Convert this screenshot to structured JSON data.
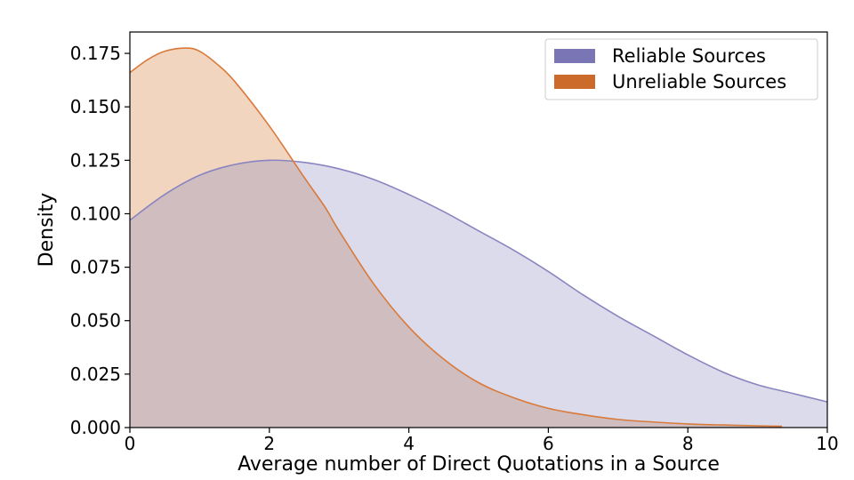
{
  "chart_data": {
    "type": "area",
    "title": "",
    "xlabel": "Average number of Direct Quotations in a Source",
    "ylabel": "Density",
    "xlim": [
      0,
      10
    ],
    "ylim": [
      0,
      0.185
    ],
    "x_ticks": [
      "0",
      "2",
      "4",
      "6",
      "8",
      "10"
    ],
    "y_ticks": [
      "0.000",
      "0.025",
      "0.050",
      "0.075",
      "0.100",
      "0.125",
      "0.150",
      "0.175"
    ],
    "grid": false,
    "legend_position": "top-right",
    "series": [
      {
        "name": "Reliable Sources",
        "line_color": "#8a85c0",
        "fill_color": "#dcdbeb",
        "x": [
          0,
          0.5,
          1,
          1.5,
          2,
          2.5,
          3,
          3.5,
          4,
          4.5,
          5,
          5.5,
          6,
          6.5,
          7,
          7.5,
          8,
          8.5,
          9,
          9.5,
          10
        ],
        "y": [
          0.097,
          0.109,
          0.118,
          0.123,
          0.125,
          0.124,
          0.121,
          0.116,
          0.109,
          0.101,
          0.092,
          0.083,
          0.073,
          0.062,
          0.052,
          0.043,
          0.034,
          0.026,
          0.02,
          0.016,
          0.012
        ]
      },
      {
        "name": "Unreliable Sources",
        "line_color": "#d97a3a",
        "fill_color": "#f2d5bf",
        "x": [
          0,
          0.25,
          0.5,
          0.8,
          1,
          1.25,
          1.5,
          2,
          2.5,
          2.8,
          3,
          3.5,
          4,
          4.5,
          5,
          5.5,
          6,
          6.5,
          7,
          7.5,
          8,
          8.5,
          9,
          9.35
        ],
        "y": [
          0.166,
          0.172,
          0.176,
          0.1775,
          0.176,
          0.17,
          0.162,
          0.141,
          0.117,
          0.103,
          0.092,
          0.067,
          0.047,
          0.032,
          0.021,
          0.014,
          0.009,
          0.006,
          0.0038,
          0.0026,
          0.0017,
          0.0012,
          0.0008,
          0.0006
        ]
      }
    ],
    "overlap_fill_color": "#cfbdbf"
  }
}
